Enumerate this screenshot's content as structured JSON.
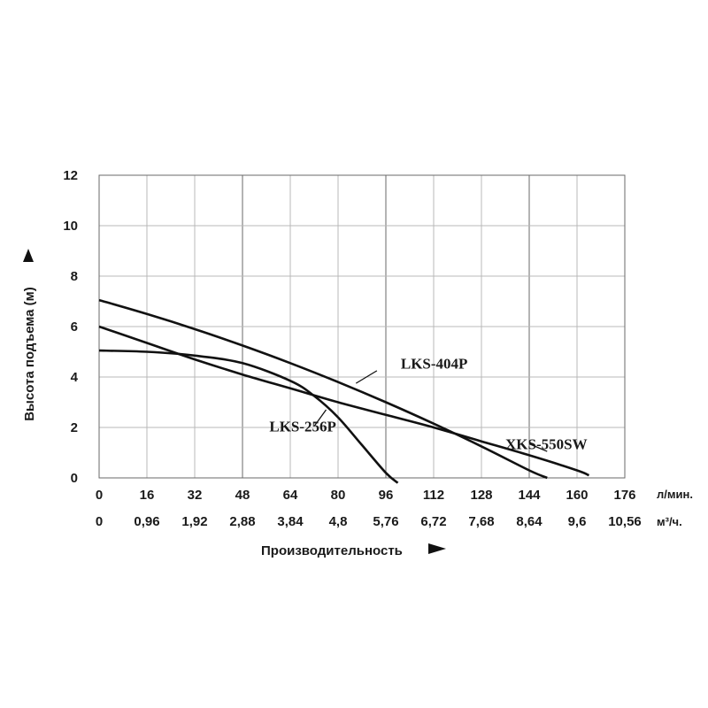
{
  "chart_data": {
    "type": "line",
    "title": "",
    "ylabel": "Высота подъема (м)",
    "xlabel": "Производительность",
    "ylim": [
      0,
      12
    ],
    "xlim": [
      0,
      176
    ],
    "grid": true,
    "y_ticks": [
      "0",
      "2",
      "4",
      "6",
      "8",
      "10",
      "12"
    ],
    "x_ticks": [
      "0",
      "16",
      "32",
      "48",
      "64",
      "80",
      "96",
      "112",
      "128",
      "144",
      "160",
      "176"
    ],
    "x_ticks_secondary": [
      "0",
      "0,96",
      "1,92",
      "2,88",
      "3,84",
      "4,8",
      "5,76",
      "6,72",
      "7,68",
      "8,64",
      "9,6",
      "10,56"
    ],
    "x_unit": "л/мин.",
    "x_unit_secondary": "м³/ч.",
    "series": [
      {
        "name": "LKS-404P",
        "x": [
          0,
          16,
          32,
          48,
          64,
          80,
          96,
          112,
          128,
          144,
          150
        ],
        "y": [
          7.05,
          6.5,
          5.9,
          5.25,
          4.55,
          3.8,
          3.0,
          2.15,
          1.25,
          0.3,
          0
        ]
      },
      {
        "name": "LKS-256P",
        "x": [
          0,
          16,
          32,
          48,
          64,
          72,
          80,
          88,
          96,
          100
        ],
        "y": [
          5.05,
          5.0,
          4.85,
          4.55,
          3.85,
          3.25,
          2.4,
          1.3,
          0.2,
          -0.2
        ]
      },
      {
        "name": "XKS-550SW",
        "x": [
          0,
          16,
          32,
          48,
          64,
          80,
          96,
          112,
          128,
          144,
          160,
          164
        ],
        "y": [
          6.0,
          5.35,
          4.7,
          4.1,
          3.55,
          3.0,
          2.5,
          2.0,
          1.45,
          0.9,
          0.3,
          0.1
        ]
      }
    ]
  }
}
